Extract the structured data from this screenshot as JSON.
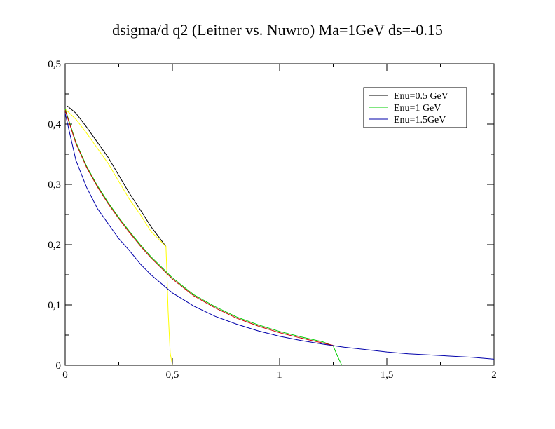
{
  "chart_data": {
    "type": "line",
    "title": "dsigma/d q2 (Leitner vs. Nuwro) Ma=1GeV ds=-0.15",
    "xlabel": "",
    "ylabel": "",
    "xlim": [
      0,
      2
    ],
    "ylim": [
      0,
      0.5
    ],
    "x_ticks": [
      0,
      0.5,
      1,
      1.5,
      2
    ],
    "x_tick_labels": [
      "0",
      "0,5",
      "1",
      "1,5",
      "2"
    ],
    "y_ticks": [
      0,
      0.1,
      0.2,
      0.3,
      0.4,
      0.5
    ],
    "y_tick_labels": [
      "0",
      "0,1",
      "0,2",
      "0,3",
      "0,4",
      "0,5"
    ],
    "grid": false,
    "legend_position": "top-right",
    "legend": [
      {
        "label": "Enu=0.5 GeV",
        "color": "#000000"
      },
      {
        "label": "Enu=1 GeV",
        "color": "#00cc00"
      },
      {
        "label": "Enu=1.5GeV",
        "color": "#0000aa"
      }
    ],
    "series": [
      {
        "name": "Enu=0.5 GeV",
        "color": "#000000",
        "x": [
          0.01,
          0.05,
          0.1,
          0.15,
          0.2,
          0.25,
          0.3,
          0.35,
          0.4,
          0.47
        ],
        "y": [
          0.43,
          0.418,
          0.395,
          0.37,
          0.345,
          0.315,
          0.285,
          0.258,
          0.23,
          0.197
        ]
      },
      {
        "color": "#ffff00",
        "x": [
          0.0,
          0.05,
          0.1,
          0.15,
          0.2,
          0.25,
          0.3,
          0.35,
          0.4,
          0.47,
          0.475,
          0.48,
          0.49,
          0.5
        ],
        "y": [
          0.425,
          0.408,
          0.385,
          0.36,
          0.335,
          0.305,
          0.275,
          0.25,
          0.222,
          0.197,
          0.15,
          0.09,
          0.02,
          0.0
        ]
      },
      {
        "name": "Enu=1 GeV",
        "color": "#00cc00",
        "x": [
          0.0,
          0.05,
          0.1,
          0.15,
          0.2,
          0.25,
          0.3,
          0.35,
          0.4,
          0.5,
          0.6,
          0.7,
          0.8,
          0.9,
          1.0,
          1.1,
          1.2,
          1.25,
          1.27,
          1.29
        ],
        "y": [
          0.425,
          0.37,
          0.33,
          0.298,
          0.27,
          0.245,
          0.222,
          0.2,
          0.18,
          0.145,
          0.117,
          0.097,
          0.08,
          0.067,
          0.056,
          0.047,
          0.039,
          0.032,
          0.015,
          0.0
        ]
      },
      {
        "color": "#cc0000",
        "x": [
          0.0,
          0.05,
          0.1,
          0.15,
          0.2,
          0.25,
          0.3,
          0.35,
          0.4,
          0.5,
          0.6,
          0.7,
          0.8,
          0.9,
          1.0,
          1.1,
          1.2,
          1.25
        ],
        "y": [
          0.423,
          0.368,
          0.328,
          0.296,
          0.268,
          0.243,
          0.22,
          0.198,
          0.178,
          0.143,
          0.115,
          0.095,
          0.078,
          0.065,
          0.054,
          0.045,
          0.037,
          0.033
        ]
      },
      {
        "name": "Enu=1.5GeV",
        "color": "#0000aa",
        "x": [
          0.0,
          0.05,
          0.1,
          0.15,
          0.2,
          0.25,
          0.3,
          0.35,
          0.4,
          0.5,
          0.6,
          0.7,
          0.8,
          0.9,
          1.0,
          1.1,
          1.2,
          1.3,
          1.4,
          1.5,
          1.6,
          1.7,
          1.8,
          1.9,
          2.0
        ],
        "y": [
          0.418,
          0.34,
          0.295,
          0.26,
          0.235,
          0.21,
          0.19,
          0.168,
          0.15,
          0.12,
          0.098,
          0.081,
          0.068,
          0.057,
          0.048,
          0.041,
          0.035,
          0.03,
          0.026,
          0.022,
          0.019,
          0.017,
          0.015,
          0.013,
          0.01
        ]
      }
    ]
  }
}
